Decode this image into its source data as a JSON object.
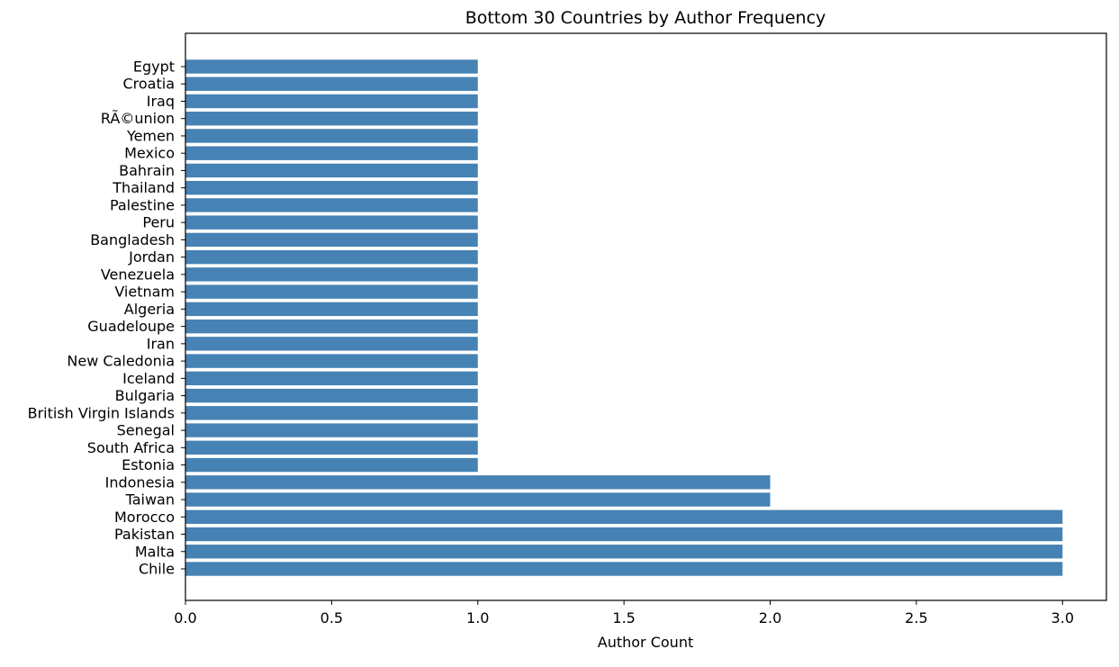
{
  "chart_data": {
    "type": "bar",
    "orientation": "horizontal",
    "title": "Bottom 30 Countries by Author Frequency",
    "xlabel": "Author Count",
    "ylabel": "",
    "categories": [
      "Chile",
      "Malta",
      "Pakistan",
      "Morocco",
      "Taiwan",
      "Indonesia",
      "Estonia",
      "South Africa",
      "Senegal",
      "British Virgin Islands",
      "Bulgaria",
      "Iceland",
      "New Caledonia",
      "Iran",
      "Guadeloupe",
      "Algeria",
      "Vietnam",
      "Venezuela",
      "Jordan",
      "Bangladesh",
      "Peru",
      "Palestine",
      "Thailand",
      "Bahrain",
      "Mexico",
      "Yemen",
      "RÃ©union",
      "Iraq",
      "Croatia",
      "Egypt"
    ],
    "values": [
      3,
      3,
      3,
      3,
      2,
      2,
      1,
      1,
      1,
      1,
      1,
      1,
      1,
      1,
      1,
      1,
      1,
      1,
      1,
      1,
      1,
      1,
      1,
      1,
      1,
      1,
      1,
      1,
      1,
      1
    ],
    "xlim": [
      0,
      3.15
    ],
    "xticks": [
      "0.0",
      "0.5",
      "1.0",
      "1.5",
      "2.0",
      "2.5",
      "3.0"
    ],
    "grid": false,
    "bar_color": "#4682b4"
  }
}
